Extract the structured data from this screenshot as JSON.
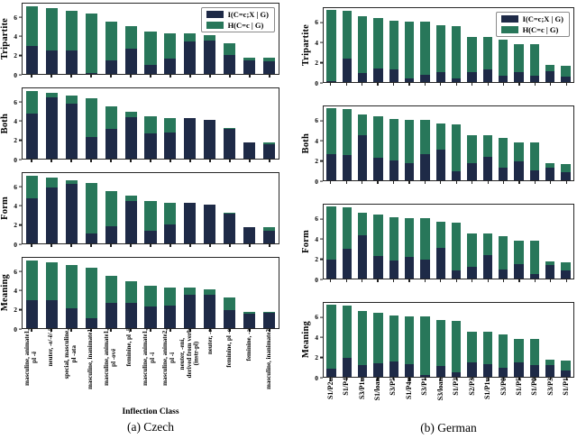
{
  "legend": {
    "items": [
      {
        "label": "I(C=c;X | G)",
        "color": "#1e2a47"
      },
      {
        "label": "H(C=c | G)",
        "color": "#28775a"
      }
    ]
  },
  "chart_data": [
    {
      "type": "bar",
      "stacked": true,
      "panel_caption": "(a) Czech",
      "xlabel": "Inflection Class",
      "ylim": [
        0,
        7.5
      ],
      "yticks": [
        0,
        2,
        4,
        6
      ],
      "grid": false,
      "legend_position": "upper right (first subplot)",
      "categories": [
        "masculine, animate1,\npl -ě",
        "neuter, -e/-ě/-í",
        "special, masculine,\npl -ata",
        "masculine, inanimate1",
        "masculine, animate1,\npl -ové",
        "feminine, pl -i",
        "masculine, animate1,\npl -i",
        "masculine, animate2,\npl -i",
        "neuter, -ení,\nderived from verb\n(instr-pl)",
        "neuter, -o",
        "feminine, pl -e",
        "feminine, -a",
        "masculine, inanimate2"
      ],
      "subplots": [
        {
          "ylabel": "Tripartite",
          "legend": true,
          "series": [
            {
              "name": "I(C=c;X | G)",
              "color": "#1e2a47",
              "values": [
                3.0,
                2.5,
                2.5,
                0.1,
                1.4,
                2.7,
                1.0,
                1.6,
                3.5,
                3.6,
                2.0,
                1.45,
                1.35
              ]
            },
            {
              "name": "H(C=c | G)",
              "color": "#28775a",
              "values": [
                4.2,
                4.5,
                4.2,
                6.35,
                4.2,
                2.35,
                3.55,
                2.75,
                0.8,
                0.55,
                1.3,
                0.25,
                0.35
              ]
            }
          ]
        },
        {
          "ylabel": "Both",
          "legend": false,
          "series": [
            {
              "name": "I(C=c;X | G)",
              "color": "#1e2a47",
              "values": [
                4.8,
                6.5,
                5.9,
                2.3,
                3.2,
                4.4,
                2.7,
                2.8,
                4.3,
                4.15,
                3.2,
                1.7,
                1.5
              ]
            },
            {
              "name": "H(C=c | G)",
              "color": "#28775a",
              "values": [
                2.4,
                0.5,
                0.8,
                4.15,
                2.4,
                0.65,
                1.85,
                1.55,
                0.0,
                0.0,
                0.1,
                0.0,
                0.2
              ]
            }
          ]
        },
        {
          "ylabel": "Form",
          "legend": false,
          "series": [
            {
              "name": "I(C=c;X | G)",
              "color": "#1e2a47",
              "values": [
                4.85,
                6.0,
                6.3,
                1.1,
                1.85,
                4.5,
                1.3,
                2.0,
                4.3,
                4.15,
                3.2,
                1.7,
                1.35
              ]
            },
            {
              "name": "H(C=c | G)",
              "color": "#28775a",
              "values": [
                2.35,
                1.0,
                0.4,
                5.35,
                3.75,
                0.55,
                3.25,
                2.35,
                0.0,
                0.0,
                0.1,
                0.0,
                0.35
              ]
            }
          ]
        },
        {
          "ylabel": "Meaning",
          "legend": false,
          "series": [
            {
              "name": "I(C=c;X | G)",
              "color": "#1e2a47",
              "values": [
                2.95,
                3.0,
                2.15,
                1.05,
                2.65,
                2.65,
                2.3,
                2.4,
                3.6,
                3.6,
                1.95,
                1.5,
                1.6
              ]
            },
            {
              "name": "H(C=c | G)",
              "color": "#28775a",
              "values": [
                4.25,
                4.0,
                4.55,
                5.4,
                2.95,
                2.4,
                2.25,
                1.95,
                0.7,
                0.55,
                1.35,
                0.2,
                0.1
              ]
            }
          ]
        }
      ]
    },
    {
      "type": "bar",
      "stacked": true,
      "panel_caption": "(b) German",
      "xlabel": "",
      "ylim": [
        0,
        7.5
      ],
      "yticks": [
        0,
        2,
        4,
        6
      ],
      "grid": false,
      "legend_position": "upper right (first subplot)",
      "categories": [
        "S1/P2u",
        "S1/P4",
        "S3/P1u",
        "S1/loan",
        "S3/P5",
        "S1/P4u",
        "S3/P1",
        "S3/loan",
        "S1/P3",
        "S2/P3",
        "S1/P1u",
        "S3/P0",
        "S1/P5",
        "S1/P0",
        "S3/P3",
        "S1/P1"
      ],
      "subplots": [
        {
          "ylabel": "Tripartite",
          "legend": true,
          "series": [
            {
              "name": "I(C=c;X | G)",
              "color": "#1e2a47",
              "values": [
                0.05,
                2.4,
                0.95,
                1.4,
                1.3,
                0.4,
                0.7,
                1.05,
                0.4,
                1.0,
                1.25,
                0.6,
                1.05,
                0.65,
                1.1,
                0.55
              ]
            },
            {
              "name": "H(C=c | G)",
              "color": "#28775a",
              "values": [
                7.25,
                4.8,
                5.75,
                5.1,
                4.9,
                5.75,
                5.45,
                4.75,
                5.3,
                3.6,
                3.3,
                3.7,
                2.8,
                3.15,
                0.65,
                1.1
              ]
            }
          ]
        },
        {
          "ylabel": "Both",
          "legend": false,
          "series": [
            {
              "name": "I(C=c;X | G)",
              "color": "#1e2a47",
              "values": [
                2.65,
                2.55,
                4.55,
                2.3,
                2.05,
                1.7,
                2.65,
                3.1,
                0.9,
                1.7,
                2.35,
                1.25,
                1.9,
                1.0,
                1.3,
                0.85
              ]
            },
            {
              "name": "H(C=c | G)",
              "color": "#28775a",
              "values": [
                4.65,
                4.65,
                2.15,
                4.2,
                4.15,
                4.45,
                3.5,
                2.7,
                4.8,
                2.9,
                2.2,
                3.05,
                1.95,
                2.8,
                0.45,
                0.8
              ]
            }
          ]
        },
        {
          "ylabel": "Form",
          "legend": false,
          "series": [
            {
              "name": "I(C=c;X | G)",
              "color": "#1e2a47",
              "values": [
                1.9,
                3.05,
                4.35,
                2.3,
                1.8,
                2.2,
                1.9,
                3.15,
                0.85,
                1.2,
                2.4,
                0.95,
                1.5,
                0.5,
                1.35,
                0.85
              ]
            },
            {
              "name": "H(C=c | G)",
              "color": "#28775a",
              "values": [
                5.4,
                4.15,
                2.35,
                4.2,
                4.4,
                3.95,
                4.25,
                2.65,
                4.85,
                3.4,
                2.15,
                3.35,
                2.35,
                3.3,
                0.4,
                0.8
              ]
            }
          ]
        },
        {
          "ylabel": "Meaning",
          "legend": false,
          "series": [
            {
              "name": "I(C=c;X | G)",
              "color": "#1e2a47",
              "values": [
                0.8,
                1.9,
                1.2,
                1.4,
                1.55,
                1.3,
                0.2,
                1.1,
                0.45,
                1.5,
                1.25,
                0.95,
                1.45,
                1.2,
                1.15,
                0.6
              ]
            },
            {
              "name": "H(C=c | G)",
              "color": "#28775a",
              "values": [
                6.5,
                5.3,
                5.5,
                5.1,
                4.65,
                4.85,
                5.95,
                4.7,
                5.25,
                3.1,
                3.3,
                3.35,
                2.4,
                2.6,
                0.6,
                1.05
              ]
            }
          ]
        }
      ]
    }
  ]
}
